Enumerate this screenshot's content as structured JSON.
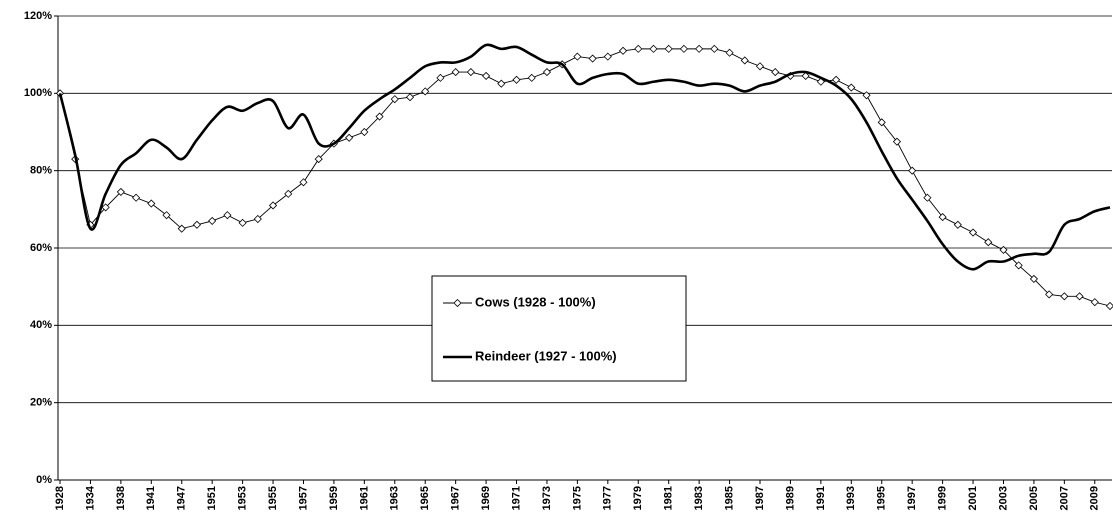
{
  "chart_data": {
    "type": "line",
    "categories": [
      "1928",
      null,
      "1934",
      null,
      "1938",
      null,
      "1941",
      null,
      "1947",
      null,
      "1951",
      null,
      "1953",
      null,
      "1955",
      null,
      "1957",
      null,
      "1959",
      null,
      "1961",
      null,
      "1963",
      null,
      "1965",
      null,
      "1967",
      null,
      "1969",
      null,
      "1971",
      null,
      "1973",
      null,
      "1975",
      null,
      "1977",
      null,
      "1979",
      null,
      "1981",
      null,
      "1983",
      null,
      "1985",
      null,
      "1987",
      null,
      "1989",
      null,
      "1991",
      null,
      "1993",
      null,
      "1995",
      null,
      "1997",
      null,
      "1999",
      null,
      "2001",
      null,
      "2003",
      null,
      "2005",
      null,
      "2007",
      null,
      "2009",
      null
    ],
    "series": [
      {
        "name": "Cows (1928 - 100%)",
        "color": "#000000",
        "marker": "diamond",
        "smooth": false,
        "values": [
          100,
          83,
          66,
          70.5,
          74.5,
          73,
          71.5,
          68.5,
          65,
          66,
          67,
          68.5,
          66.5,
          67.5,
          71,
          74,
          77,
          83,
          87,
          88.5,
          90,
          94,
          98.5,
          99,
          100.5,
          104,
          105.5,
          105.5,
          104.5,
          102.5,
          103.5,
          104,
          105.5,
          107.5,
          109.5,
          109,
          109.5,
          111,
          111.5,
          111.5,
          111.5,
          111.5,
          111.5,
          111.5,
          110.5,
          108.5,
          107,
          105.5,
          104.5,
          104.5,
          103,
          103.5,
          101.5,
          99.5,
          92.5,
          87.5,
          80,
          73,
          68,
          66,
          64,
          61.5,
          59.5,
          55.5,
          52,
          48,
          47.5,
          47.5,
          46,
          45
        ]
      },
      {
        "name": "Reindeer (1927 - 100%)",
        "color": "#000000",
        "marker": "none",
        "smooth": true,
        "values": [
          100,
          84,
          65,
          74,
          81.5,
          84.5,
          88,
          86,
          83,
          88,
          93,
          96.5,
          95.5,
          97.5,
          98,
          91,
          94.5,
          87,
          87,
          91,
          95.5,
          98.5,
          101,
          104,
          107,
          108,
          108,
          109.5,
          112.5,
          111.5,
          112,
          110,
          108,
          107.5,
          102.5,
          104,
          105,
          105,
          102.5,
          103,
          103.5,
          103,
          102,
          102.5,
          102,
          100.5,
          102,
          103,
          105,
          105.5,
          104,
          102,
          98.5,
          92.5,
          85,
          78,
          72.5,
          67,
          61,
          56.5,
          54.5,
          56.5,
          56.5,
          58,
          58.5,
          59,
          66,
          67.5,
          69.5,
          70.5
        ]
      }
    ],
    "ylim": [
      0,
      120
    ],
    "yticks": [
      {
        "value": 0,
        "label": "0%"
      },
      {
        "value": 20,
        "label": "20%"
      },
      {
        "value": 40,
        "label": "40%"
      },
      {
        "value": 60,
        "label": "60%"
      },
      {
        "value": 80,
        "label": "80%"
      },
      {
        "value": 100,
        "label": "100%"
      },
      {
        "value": 120,
        "label": "120%"
      }
    ],
    "grid": true
  }
}
